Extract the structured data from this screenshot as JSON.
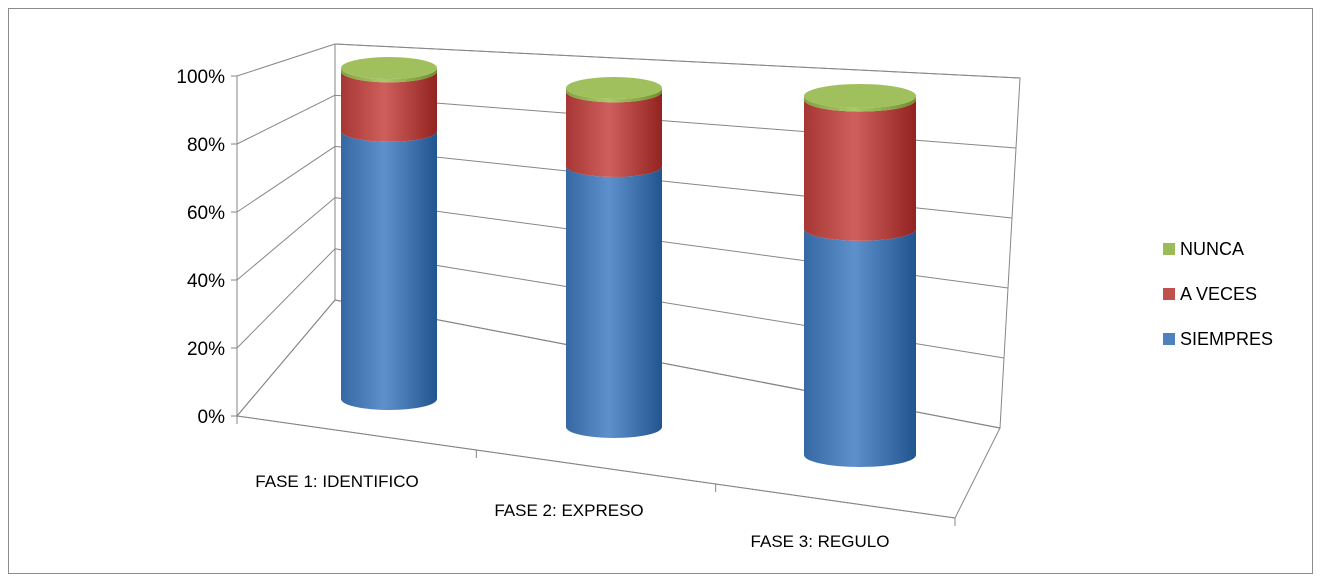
{
  "chart_data": {
    "type": "bar",
    "stacked": true,
    "percent_stacked": true,
    "three_d": true,
    "bar_shape": "cylinder",
    "categories": [
      "FASE 1: IDENTIFICO",
      "FASE 2: EXPRESO",
      "FASE 3: REGULO"
    ],
    "series": [
      {
        "name": "SIEMPRES",
        "color": "#4f81bd",
        "values": [
          81,
          77,
          63
        ]
      },
      {
        "name": "A  VECES",
        "color": "#c0504d",
        "values": [
          18,
          22,
          36
        ]
      },
      {
        "name": "NUNCA",
        "color": "#9bbb59",
        "values": [
          1,
          1,
          1
        ]
      }
    ],
    "y_ticks": [
      "0%",
      "20%",
      "40%",
      "60%",
      "80%",
      "100%"
    ],
    "ylim": [
      0,
      100
    ],
    "grid": true,
    "legend_position": "right"
  }
}
